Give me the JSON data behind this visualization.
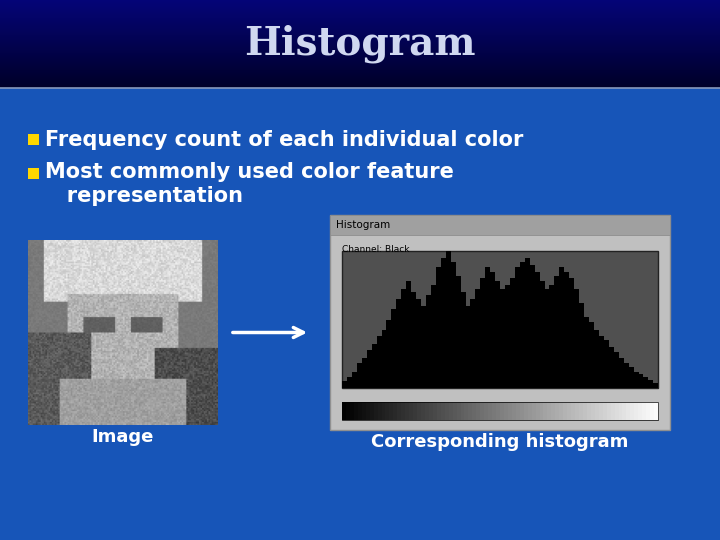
{
  "title": "Histogram",
  "title_color": "#d0d8f0",
  "title_fontsize": 28,
  "bullet_color": "#FFD700",
  "bullet1": "Frequency count of each individual color",
  "bullet2_line1": "Most commonly used color feature",
  "bullet2_line2": "   representation",
  "bullet_fontsize": 15,
  "label_image": "Image",
  "label_hist": "Corresponding histogram",
  "label_fontsize": 13,
  "divider_color": "#8899bb",
  "hist_vals": [
    0.05,
    0.08,
    0.12,
    0.18,
    0.22,
    0.28,
    0.32,
    0.38,
    0.42,
    0.5,
    0.58,
    0.65,
    0.72,
    0.78,
    0.7,
    0.65,
    0.6,
    0.68,
    0.75,
    0.88,
    0.95,
    1.0,
    0.92,
    0.82,
    0.7,
    0.6,
    0.65,
    0.72,
    0.8,
    0.88,
    0.85,
    0.78,
    0.72,
    0.75,
    0.8,
    0.88,
    0.92,
    0.95,
    0.9,
    0.85,
    0.78,
    0.72,
    0.75,
    0.82,
    0.88,
    0.85,
    0.8,
    0.72,
    0.62,
    0.52,
    0.48,
    0.42,
    0.38,
    0.35,
    0.3,
    0.26,
    0.22,
    0.18,
    0.15,
    0.12,
    0.1,
    0.08,
    0.06,
    0.04
  ]
}
